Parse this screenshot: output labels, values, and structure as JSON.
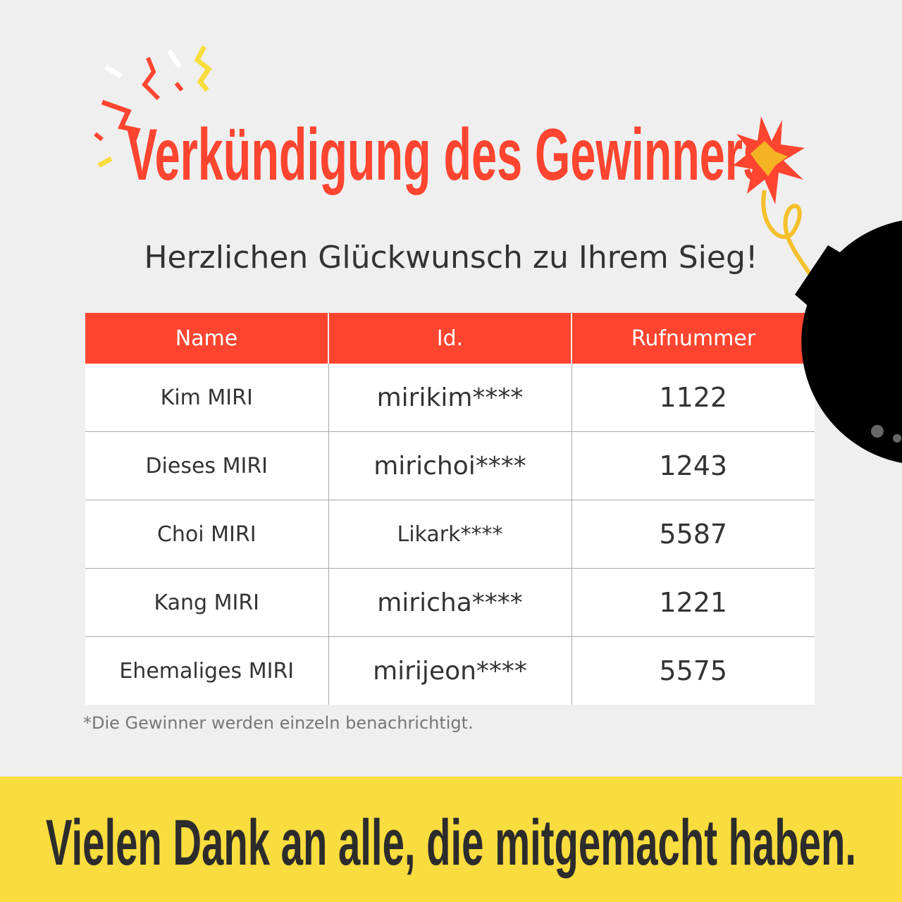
{
  "title": "Verkündigung des Gewinners",
  "subtitle": "Herzlichen Glückwunsch zu Ihrem Sieg!",
  "table": {
    "headers": [
      "Name",
      "Id.",
      "Rufnummer"
    ],
    "rows": [
      [
        "Kim MIRI",
        "mirikim****",
        "1122"
      ],
      [
        "Dieses MIRI",
        "mirichoi****",
        "1243"
      ],
      [
        "Choi MIRI",
        "Likark****",
        "5587"
      ],
      [
        "Kang MIRI",
        "miricha****",
        "1221"
      ],
      [
        "Ehemaliges MIRI",
        "mirijeon****",
        "5575"
      ]
    ]
  },
  "note": "*Die Gewinner werden einzeln benachrichtigt.",
  "footer": "Vielen Dank an alle, die mitgemacht haben.",
  "colors": {
    "accent": "#ff4530",
    "yellow": "#f9dc3e",
    "background": "#efefef"
  }
}
